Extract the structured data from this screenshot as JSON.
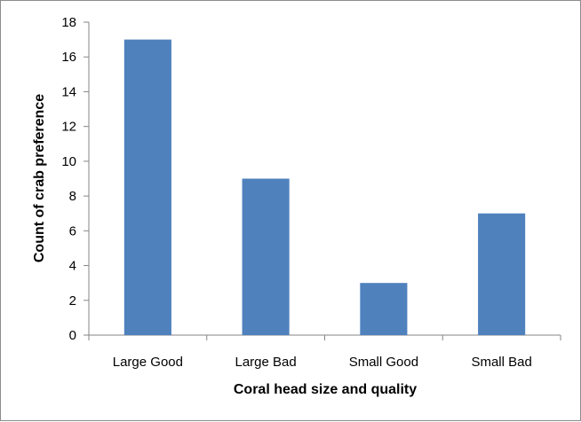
{
  "chart_data": {
    "type": "bar",
    "title": "",
    "xlabel": "Coral head size and quality",
    "ylabel": "Count of crab preference",
    "categories": [
      "Large Good",
      "Large Bad",
      "Small Good",
      "Small Bad"
    ],
    "series": [
      {
        "values": [
          17,
          9,
          3,
          7
        ]
      }
    ],
    "ylim": [
      0,
      18
    ],
    "yticks": [
      0,
      2,
      4,
      6,
      8,
      10,
      12,
      14,
      16,
      18
    ],
    "grid": false,
    "legend": "none",
    "colors": {
      "bar": "#4f81bd",
      "axis": "#868686"
    }
  }
}
